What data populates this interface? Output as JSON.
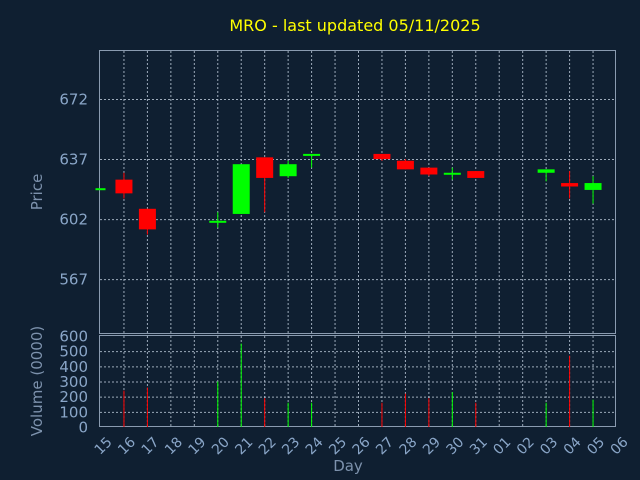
{
  "chart_data": {
    "type": "candlestick",
    "title": "MRO - last updated 05/11/2025",
    "ylabel": "Price",
    "xlabel": "Day",
    "volume_label": "Volume (0000)",
    "ylim": [
      535,
      700
    ],
    "volume_ylim": [
      0,
      600
    ],
    "price_ticks": [
      567,
      602,
      637,
      672
    ],
    "volume_ticks": [
      0,
      100,
      200,
      300,
      400,
      500,
      600
    ],
    "x_labels": [
      "15",
      "16",
      "17",
      "18",
      "19",
      "20",
      "21",
      "22",
      "23",
      "24",
      "25",
      "26",
      "27",
      "28",
      "29",
      "30",
      "31",
      "01",
      "02",
      "03",
      "04",
      "05",
      "06"
    ],
    "grid": true,
    "colors": {
      "up": "#00ff00",
      "down": "#ff0000",
      "background": "#0f1f31"
    },
    "candles": [
      {
        "x": "15",
        "open": 620,
        "high": 620,
        "low": 620,
        "close": 620,
        "volume": 0
      },
      {
        "x": "16",
        "open": 625,
        "high": 629,
        "low": 614,
        "close": 617,
        "volume": 240
      },
      {
        "x": "17",
        "open": 608,
        "high": 608,
        "low": 593,
        "close": 596,
        "volume": 260
      },
      {
        "x": "20",
        "open": 601,
        "high": 606,
        "low": 597,
        "close": 601,
        "volume": 300
      },
      {
        "x": "21",
        "open": 605,
        "high": 634,
        "low": 605,
        "close": 634,
        "volume": 550
      },
      {
        "x": "22",
        "open": 638,
        "high": 638,
        "low": 606,
        "close": 626,
        "volume": 190
      },
      {
        "x": "23",
        "open": 627,
        "high": 636,
        "low": 626,
        "close": 634,
        "volume": 160
      },
      {
        "x": "24",
        "open": 639,
        "high": 640,
        "low": 632,
        "close": 640,
        "volume": 160
      },
      {
        "x": "27",
        "open": 640,
        "high": 640,
        "low": 636,
        "close": 637,
        "volume": 160
      },
      {
        "x": "28",
        "open": 636,
        "high": 637,
        "low": 631,
        "close": 631,
        "volume": 220
      },
      {
        "x": "29",
        "open": 632,
        "high": 632,
        "low": 627,
        "close": 628,
        "volume": 190
      },
      {
        "x": "30",
        "open": 628,
        "high": 632,
        "low": 625,
        "close": 629,
        "volume": 230
      },
      {
        "x": "31",
        "open": 630,
        "high": 630,
        "low": 626,
        "close": 626,
        "volume": 160
      },
      {
        "x": "03",
        "open": 629,
        "high": 631,
        "low": 624,
        "close": 631,
        "volume": 160
      },
      {
        "x": "04",
        "open": 623,
        "high": 630,
        "low": 614,
        "close": 621,
        "volume": 470
      },
      {
        "x": "05",
        "open": 619,
        "high": 627,
        "low": 611,
        "close": 623,
        "volume": 180
      }
    ]
  }
}
